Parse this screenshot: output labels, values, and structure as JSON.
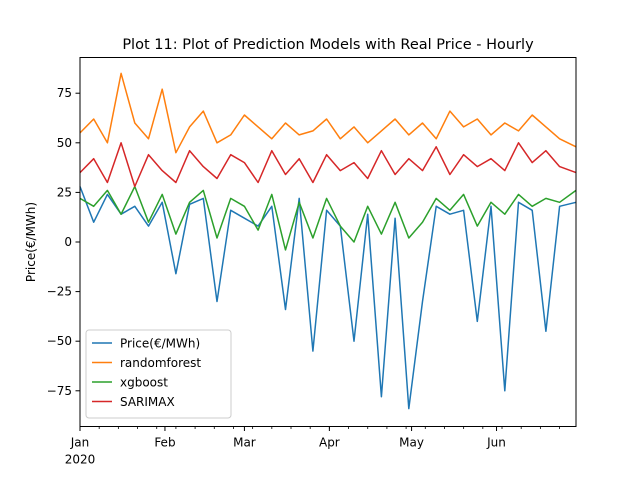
{
  "chart_data": {
    "type": "line",
    "title": "Plot 11: Plot of Prediction Models with Real Price - Hourly",
    "xlabel": "",
    "ylabel": "Price(€/MWh)",
    "ylim": [
      -93,
      93
    ],
    "xlim": [
      "2020-01-01",
      "2020-06-30"
    ],
    "x_ticks": [
      {
        "date": "2020-01-01",
        "label": "Jan",
        "sublabel": "2020"
      },
      {
        "date": "2020-02-01",
        "label": "Feb"
      },
      {
        "date": "2020-03-01",
        "label": "Mar"
      },
      {
        "date": "2020-04-01",
        "label": "Apr"
      },
      {
        "date": "2020-05-01",
        "label": "May"
      },
      {
        "date": "2020-06-01",
        "label": "Jun"
      }
    ],
    "y_ticks": [
      75,
      50,
      25,
      0,
      -25,
      -50,
      -75
    ],
    "y_tick_labels": [
      "75",
      "50",
      "25",
      "0",
      "−25",
      "−50",
      "−75"
    ],
    "grid": false,
    "legend_position": "lower-left",
    "series": [
      {
        "name": "Price(€/MWh)",
        "color": "#1f77b4",
        "x": [
          "2020-01-01",
          "2020-01-06",
          "2020-01-11",
          "2020-01-16",
          "2020-01-21",
          "2020-01-26",
          "2020-01-31",
          "2020-02-05",
          "2020-02-10",
          "2020-02-15",
          "2020-02-20",
          "2020-02-25",
          "2020-03-01",
          "2020-03-06",
          "2020-03-11",
          "2020-03-16",
          "2020-03-21",
          "2020-03-26",
          "2020-03-31",
          "2020-04-05",
          "2020-04-10",
          "2020-04-15",
          "2020-04-20",
          "2020-04-25",
          "2020-04-30",
          "2020-05-05",
          "2020-05-10",
          "2020-05-15",
          "2020-05-20",
          "2020-05-25",
          "2020-05-30",
          "2020-06-04",
          "2020-06-09",
          "2020-06-14",
          "2020-06-19",
          "2020-06-24",
          "2020-06-30"
        ],
        "y": [
          28,
          10,
          24,
          14,
          18,
          8,
          20,
          -16,
          19,
          22,
          -30,
          16,
          12,
          8,
          18,
          -34,
          22,
          -55,
          16,
          8,
          -50,
          14,
          -78,
          12,
          -84,
          -30,
          18,
          14,
          16,
          -40,
          18,
          -75,
          20,
          16,
          -45,
          18,
          20
        ]
      },
      {
        "name": "randomforest",
        "color": "#ff7f0e",
        "x": [
          "2020-01-01",
          "2020-01-06",
          "2020-01-11",
          "2020-01-16",
          "2020-01-21",
          "2020-01-26",
          "2020-01-31",
          "2020-02-05",
          "2020-02-10",
          "2020-02-15",
          "2020-02-20",
          "2020-02-25",
          "2020-03-01",
          "2020-03-06",
          "2020-03-11",
          "2020-03-16",
          "2020-03-21",
          "2020-03-26",
          "2020-03-31",
          "2020-04-05",
          "2020-04-10",
          "2020-04-15",
          "2020-04-20",
          "2020-04-25",
          "2020-04-30",
          "2020-05-05",
          "2020-05-10",
          "2020-05-15",
          "2020-05-20",
          "2020-05-25",
          "2020-05-30",
          "2020-06-04",
          "2020-06-09",
          "2020-06-14",
          "2020-06-19",
          "2020-06-24",
          "2020-06-30"
        ],
        "y": [
          55,
          62,
          50,
          85,
          60,
          52,
          77,
          45,
          58,
          66,
          50,
          54,
          64,
          58,
          52,
          60,
          54,
          56,
          62,
          52,
          58,
          50,
          56,
          62,
          54,
          60,
          52,
          66,
          58,
          62,
          54,
          60,
          56,
          64,
          58,
          52,
          48
        ]
      },
      {
        "name": "xgboost",
        "color": "#2ca02c",
        "x": [
          "2020-01-01",
          "2020-01-06",
          "2020-01-11",
          "2020-01-16",
          "2020-01-21",
          "2020-01-26",
          "2020-01-31",
          "2020-02-05",
          "2020-02-10",
          "2020-02-15",
          "2020-02-20",
          "2020-02-25",
          "2020-03-01",
          "2020-03-06",
          "2020-03-11",
          "2020-03-16",
          "2020-03-21",
          "2020-03-26",
          "2020-03-31",
          "2020-04-05",
          "2020-04-10",
          "2020-04-15",
          "2020-04-20",
          "2020-04-25",
          "2020-04-30",
          "2020-05-05",
          "2020-05-10",
          "2020-05-15",
          "2020-05-20",
          "2020-05-25",
          "2020-05-30",
          "2020-06-04",
          "2020-06-09",
          "2020-06-14",
          "2020-06-19",
          "2020-06-24",
          "2020-06-30"
        ],
        "y": [
          22,
          18,
          26,
          14,
          28,
          10,
          24,
          4,
          20,
          26,
          2,
          22,
          18,
          6,
          24,
          -4,
          20,
          2,
          22,
          8,
          0,
          18,
          4,
          20,
          2,
          10,
          22,
          16,
          24,
          8,
          20,
          14,
          24,
          18,
          22,
          20,
          26
        ]
      },
      {
        "name": "SARIMAX",
        "color": "#d62728",
        "x": [
          "2020-01-01",
          "2020-01-06",
          "2020-01-11",
          "2020-01-16",
          "2020-01-21",
          "2020-01-26",
          "2020-01-31",
          "2020-02-05",
          "2020-02-10",
          "2020-02-15",
          "2020-02-20",
          "2020-02-25",
          "2020-03-01",
          "2020-03-06",
          "2020-03-11",
          "2020-03-16",
          "2020-03-21",
          "2020-03-26",
          "2020-03-31",
          "2020-04-05",
          "2020-04-10",
          "2020-04-15",
          "2020-04-20",
          "2020-04-25",
          "2020-04-30",
          "2020-05-05",
          "2020-05-10",
          "2020-05-15",
          "2020-05-20",
          "2020-05-25",
          "2020-05-30",
          "2020-06-04",
          "2020-06-09",
          "2020-06-14",
          "2020-06-19",
          "2020-06-24",
          "2020-06-30"
        ],
        "y": [
          35,
          42,
          30,
          50,
          28,
          44,
          36,
          30,
          46,
          38,
          32,
          44,
          40,
          30,
          46,
          34,
          42,
          30,
          44,
          36,
          40,
          32,
          46,
          34,
          42,
          36,
          48,
          34,
          44,
          38,
          42,
          36,
          50,
          40,
          46,
          38,
          35
        ]
      }
    ]
  }
}
